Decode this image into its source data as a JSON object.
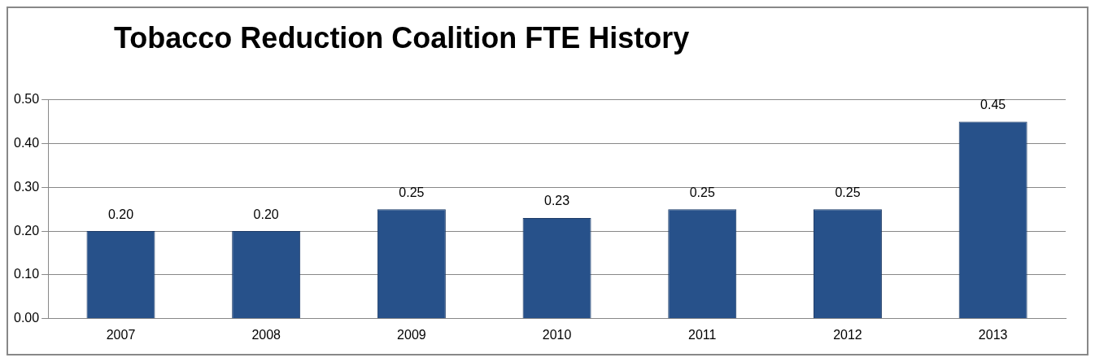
{
  "chart_data": {
    "type": "bar",
    "title": "Tobacco Reduction Coalition FTE History",
    "categories": [
      "2007",
      "2008",
      "2009",
      "2010",
      "2011",
      "2012",
      "2013"
    ],
    "values": [
      0.2,
      0.2,
      0.25,
      0.23,
      0.25,
      0.25,
      0.45
    ],
    "value_labels": [
      "0.20",
      "0.20",
      "0.25",
      "0.23",
      "0.25",
      "0.25",
      "0.45"
    ],
    "color": "#27518a",
    "ylim": [
      0,
      0.5
    ],
    "yticks": [
      {
        "value": 0,
        "label": "0.00"
      },
      {
        "value": 0.1,
        "label": "0.10"
      },
      {
        "value": 0.2,
        "label": "0.20"
      },
      {
        "value": 0.3,
        "label": "0.30"
      },
      {
        "value": 0.4,
        "label": "0.40"
      },
      {
        "value": 0.5,
        "label": "0.50"
      }
    ],
    "grid": "y",
    "legend": false
  }
}
